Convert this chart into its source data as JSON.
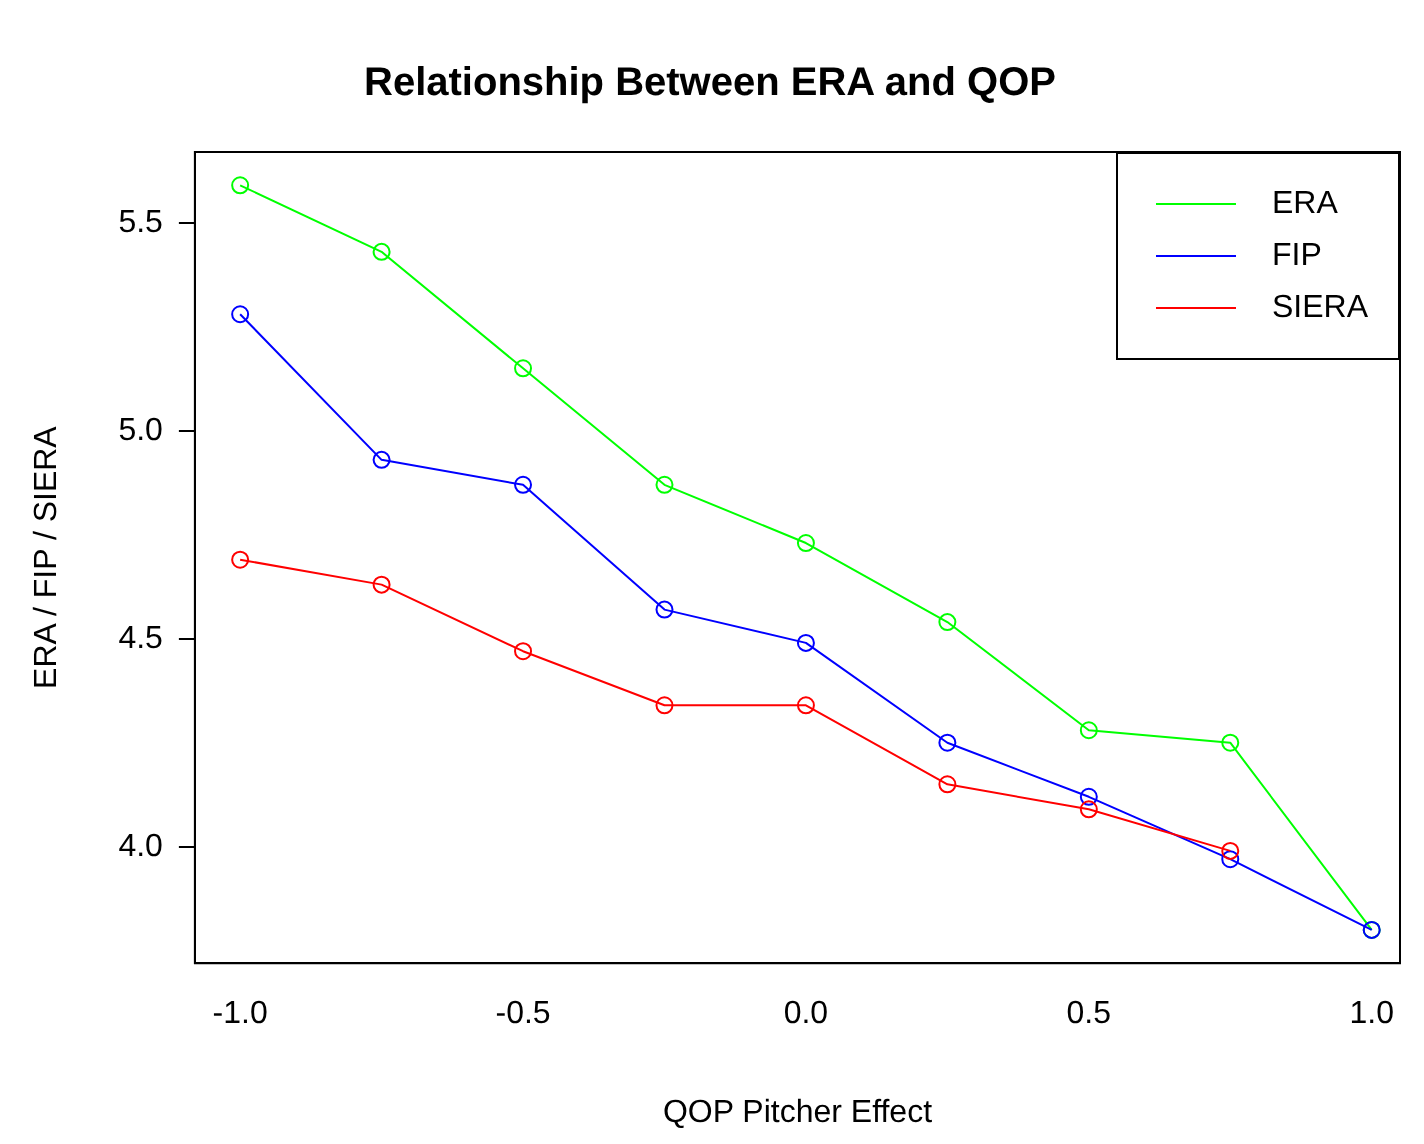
{
  "chart_data": {
    "type": "line",
    "title": "Relationship Between ERA and QOP",
    "xlabel": "QOP Pitcher Effect",
    "ylabel": "ERA / FIP / SIERA",
    "x": [
      -1.0,
      -0.75,
      -0.5,
      -0.25,
      0.0,
      0.25,
      0.5,
      0.75,
      1.0
    ],
    "series": [
      {
        "name": "ERA",
        "color": "#00ff00",
        "values": [
          5.59,
          5.43,
          5.15,
          4.87,
          4.73,
          4.54,
          4.28,
          4.25,
          3.8
        ]
      },
      {
        "name": "FIP",
        "color": "#0000ff",
        "values": [
          5.28,
          4.93,
          4.87,
          4.57,
          4.49,
          4.25,
          4.12,
          3.97,
          3.8
        ]
      },
      {
        "name": "SIERA",
        "color": "#ff0000",
        "values": [
          4.69,
          4.63,
          4.47,
          4.34,
          4.34,
          4.15,
          4.09,
          3.99,
          null
        ]
      }
    ],
    "xlim": [
      -1.08,
      1.05
    ],
    "ylim": [
      3.72,
      5.67
    ],
    "xticks": [
      {
        "value": -1,
        "label": "-1.0"
      },
      {
        "value": -0.5,
        "label": "-0.5"
      },
      {
        "value": 0,
        "label": "0.0"
      },
      {
        "value": 0.5,
        "label": "0.5"
      },
      {
        "value": 1,
        "label": "1.0"
      }
    ],
    "yticks": [
      {
        "value": 4,
        "label": "4.0"
      },
      {
        "value": 4.5,
        "label": "4.5"
      },
      {
        "value": 5,
        "label": "5.0"
      },
      {
        "value": 5.5,
        "label": "5.5"
      }
    ],
    "grid": false,
    "legend": "top right",
    "marker": "circle",
    "line_style": "solid"
  }
}
